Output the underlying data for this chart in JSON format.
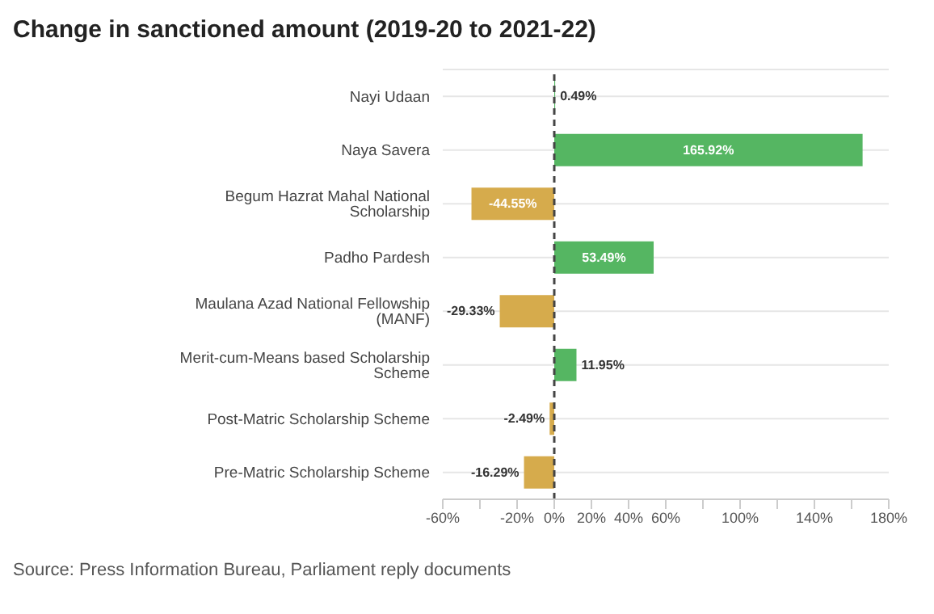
{
  "chart_data": {
    "type": "bar",
    "orientation": "horizontal",
    "title": "Change in sanctioned amount (2019-20 to 2021-22)",
    "categories": [
      "Nayi Udaan",
      "Naya Savera",
      "Begum Hazrat Mahal National Scholarship",
      "Padho Pardesh",
      "Maulana Azad National Fellowship (MANF)",
      "Merit-cum-Means based Scholarship Scheme",
      "Post-Matric Scholarship Scheme",
      "Pre-Matric Scholarship Scheme"
    ],
    "values": [
      0.49,
      165.92,
      -44.55,
      53.49,
      -29.33,
      11.95,
      -2.49,
      -16.29
    ],
    "value_labels": [
      "0.49%",
      "165.92%",
      "-44.55%",
      "53.49%",
      "-29.33%",
      "11.95%",
      "-2.49%",
      "-16.29%"
    ],
    "colors": [
      "#55b662",
      "#55b662",
      "#d6ab4c",
      "#55b662",
      "#d6ab4c",
      "#55b662",
      "#d6ab4c",
      "#d6ab4c"
    ],
    "xlim": [
      -60,
      180
    ],
    "xticks": [
      {
        "value": -60,
        "label": "-60%"
      },
      {
        "value": -40,
        "label": null
      },
      {
        "value": -20,
        "label": "-20%"
      },
      {
        "value": 0,
        "label": "0%"
      },
      {
        "value": 20,
        "label": "20%"
      },
      {
        "value": 40,
        "label": "40%"
      },
      {
        "value": 60,
        "label": "60%"
      },
      {
        "value": 80,
        "label": null
      },
      {
        "value": 100,
        "label": "100%"
      },
      {
        "value": 120,
        "label": null
      },
      {
        "value": 140,
        "label": "140%"
      },
      {
        "value": 160,
        "label": null
      },
      {
        "value": 180,
        "label": "180%"
      }
    ],
    "grid": "y",
    "ref_lines": [
      {
        "axis": "x",
        "value": 0,
        "label": null,
        "color": "#444444",
        "line_style": "dashed"
      }
    ],
    "annotations": [
      "Source: Press Information Bureau, Parliament reply documents"
    ]
  }
}
